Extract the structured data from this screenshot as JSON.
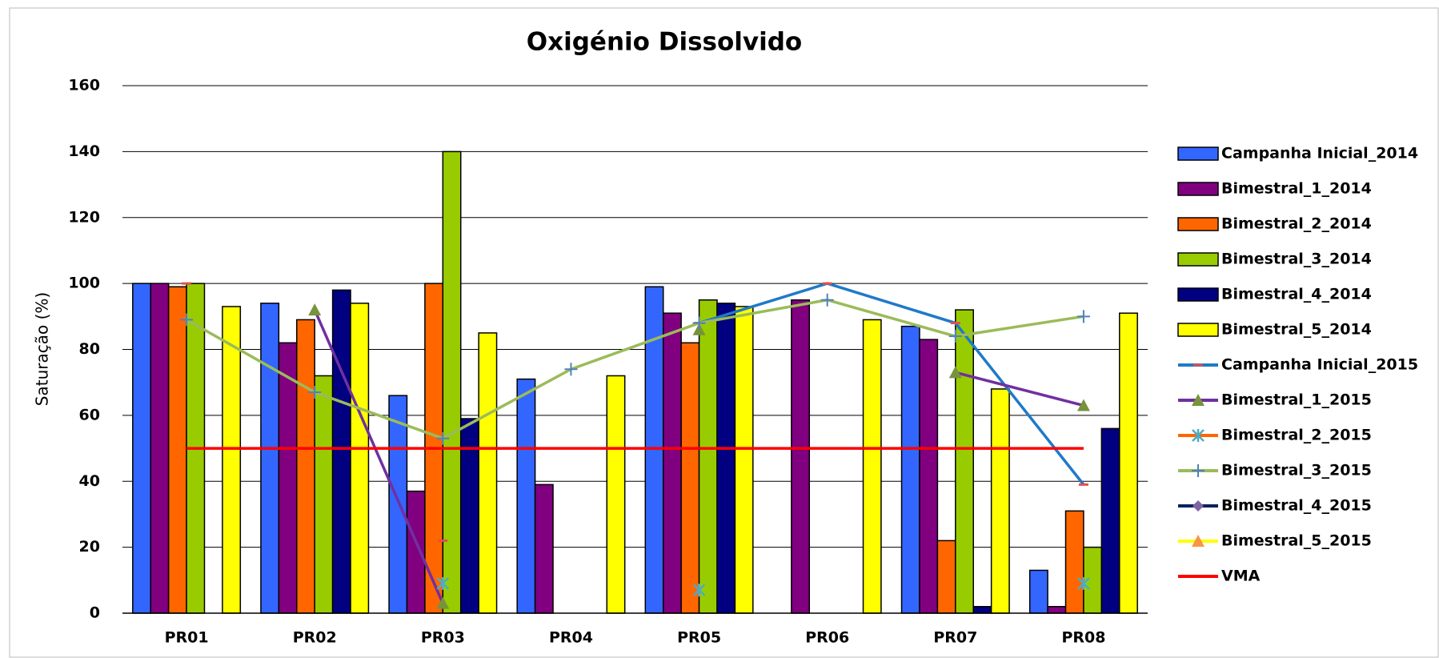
{
  "chart_data": {
    "type": "bar",
    "title": "Oxigénio Dissolvido",
    "y_label": "Saturação (%)",
    "categories": [
      "PR01",
      "PR02",
      "PR03",
      "PR04",
      "PR05",
      "PR06",
      "PR07",
      "PR08"
    ],
    "ylim": [
      0,
      160
    ],
    "yticks": [
      0,
      20,
      40,
      60,
      80,
      100,
      120,
      140,
      160
    ],
    "grid": true,
    "legend": "right",
    "series": [
      {
        "name": "Campanha Inicial_2014",
        "type": "bar",
        "color": "#3366ff",
        "values": [
          100,
          94,
          66,
          71,
          99,
          null,
          87,
          13
        ]
      },
      {
        "name": "Bimestral_1_2014",
        "type": "bar",
        "color": "#800080",
        "values": [
          100,
          82,
          37,
          39,
          91,
          95,
          83,
          2
        ]
      },
      {
        "name": "Bimestral_2_2014",
        "type": "bar",
        "color": "#ff6600",
        "values": [
          99,
          89,
          100,
          null,
          82,
          null,
          22,
          31
        ]
      },
      {
        "name": "Bimestral_3_2014",
        "type": "bar",
        "color": "#99cc00",
        "values": [
          100,
          72,
          140,
          null,
          95,
          null,
          92,
          20
        ]
      },
      {
        "name": "Bimestral_4_2014",
        "type": "bar",
        "color": "#000080",
        "values": [
          null,
          98,
          59,
          null,
          94,
          null,
          2,
          56
        ]
      },
      {
        "name": "Bimestral_5_2014",
        "type": "bar",
        "color": "#ffff00",
        "values": [
          93,
          94,
          85,
          72,
          93,
          89,
          68,
          91
        ]
      },
      {
        "name": "Campanha Inicial_2015",
        "type": "line",
        "color": "#1f7ac8",
        "marker": "dash",
        "marker_color": "#e05050",
        "values": [
          100,
          null,
          22,
          null,
          88,
          100,
          88,
          39
        ]
      },
      {
        "name": "Bimestral_1_2015",
        "type": "line",
        "color": "#7030a0",
        "marker": "triangle",
        "marker_color": "#77933c",
        "values": [
          null,
          92,
          3,
          null,
          86,
          null,
          73,
          63
        ]
      },
      {
        "name": "Bimestral_2_2015",
        "type": "line",
        "color": "#ff6600",
        "marker": "x",
        "marker_color": "#4bacc6",
        "values": [
          null,
          null,
          9,
          null,
          7,
          null,
          null,
          9
        ]
      },
      {
        "name": "Bimestral_3_2015",
        "type": "line",
        "color": "#9bbb59",
        "marker": "plus",
        "marker_color": "#4f81bd",
        "values": [
          89,
          67,
          53,
          74,
          88,
          95,
          84,
          90
        ]
      },
      {
        "name": "Bimestral_4_2015",
        "type": "line",
        "color": "#002060",
        "marker": "diamond",
        "marker_color": "#8064a2",
        "values": [
          null,
          null,
          null,
          null,
          null,
          null,
          null,
          null
        ]
      },
      {
        "name": "Bimestral_5_2015",
        "type": "line",
        "color": "#ffff00",
        "marker": "triangle",
        "marker_color": "#f79646",
        "values": [
          null,
          null,
          null,
          null,
          null,
          null,
          null,
          null
        ]
      },
      {
        "name": "VMA",
        "type": "line",
        "color": "#ff0000",
        "marker": "none",
        "marker_color": "#ff0000",
        "values": [
          50,
          50,
          50,
          50,
          50,
          50,
          50,
          50
        ]
      }
    ]
  }
}
